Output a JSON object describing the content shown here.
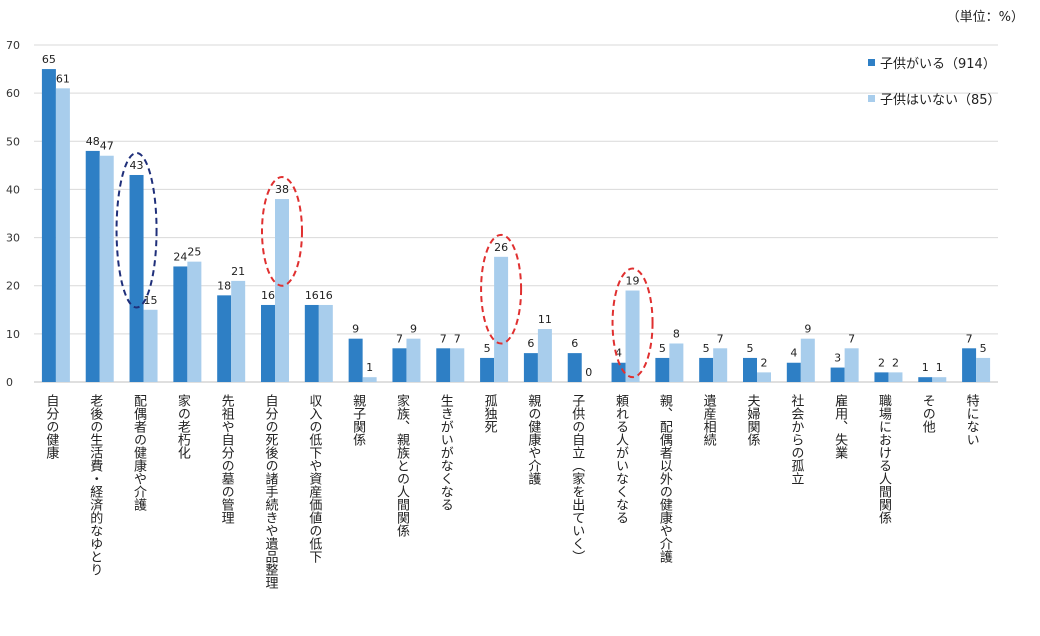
{
  "unit_label": "（単位：%）",
  "colors": {
    "series1": "#2e7fc5",
    "series2": "#a8cdec",
    "grid": "#d9d9d9",
    "ellipse_blue": "#1f2f7a",
    "ellipse_red": "#e03030"
  },
  "chart_data": {
    "type": "bar",
    "ylim": [
      0,
      70
    ],
    "yticks": [
      0,
      10,
      20,
      30,
      40,
      50,
      60,
      70
    ],
    "grid": true,
    "legend_position": "top-right",
    "categories": [
      "自分の健康",
      "老後の生活費・経済的なゆとり",
      "配偶者の健康や介護",
      "家の老朽化",
      "先祖や自分の墓の管理",
      "自分の死後の諸手続きや遺品整理",
      "収入の低下や資産価値の低下",
      "親子関係",
      "家族、親族との人間関係",
      "生きがいがなくなる",
      "孤独死",
      "親の健康や介護",
      "子供の自立（家を出ていく）",
      "頼れる人がいなくなる",
      "親、配偶者以外の健康や介護",
      "遺産相続",
      "夫婦関係",
      "社会からの孤立",
      "雇用、失業",
      "職場における人間関係",
      "その他",
      "特にない"
    ],
    "series": [
      {
        "name": "子供がいる（914）",
        "values": [
          65,
          48,
          43,
          24,
          18,
          16,
          16,
          9,
          7,
          7,
          5,
          6,
          6,
          4,
          5,
          5,
          5,
          4,
          3,
          2,
          1,
          7
        ]
      },
      {
        "name": "子供はいない（85）",
        "values": [
          61,
          47,
          15,
          25,
          21,
          38,
          16,
          1,
          9,
          7,
          26,
          11,
          0,
          19,
          8,
          7,
          2,
          9,
          7,
          2,
          1,
          5
        ]
      }
    ],
    "highlights": [
      {
        "category_index": 2,
        "series_index": 0,
        "color": "ellipse_blue"
      },
      {
        "category_index": 5,
        "series_index": 1,
        "color": "ellipse_red"
      },
      {
        "category_index": 10,
        "series_index": 1,
        "color": "ellipse_red"
      },
      {
        "category_index": 13,
        "series_index": 1,
        "color": "ellipse_red"
      }
    ]
  }
}
